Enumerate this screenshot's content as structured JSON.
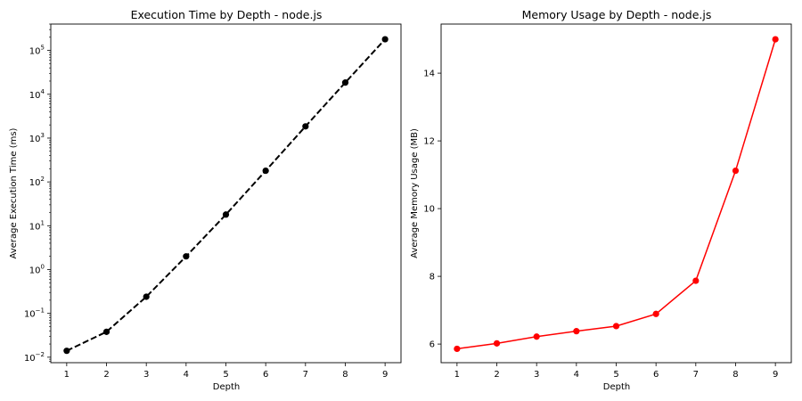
{
  "chart_data": [
    {
      "type": "line",
      "title": "Execution Time by Depth - node.js",
      "xlabel": "Depth",
      "ylabel": "Average Execution Time (ms)",
      "yscale": "log",
      "x": [
        1,
        2,
        3,
        4,
        5,
        6,
        7,
        8,
        9
      ],
      "xlim": [
        0.6,
        9.4
      ],
      "ylim": [
        0.0075,
        400000
      ],
      "grid": false,
      "series": [
        {
          "values": [
            0.014,
            0.038,
            0.24,
            2.0,
            18,
            180,
            1850,
            18500,
            180000
          ],
          "color": "#000000",
          "line_style": "dashed",
          "marker": "circle"
        }
      ],
      "x_ticks": [
        "1",
        "2",
        "3",
        "4",
        "5",
        "6",
        "7",
        "8",
        "9"
      ],
      "y_ticks": [
        {
          "base": "10",
          "exp": "−2",
          "value": 0.01
        },
        {
          "base": "10",
          "exp": "−1",
          "value": 0.1
        },
        {
          "base": "10",
          "exp": "0",
          "value": 1
        },
        {
          "base": "10",
          "exp": "1",
          "value": 10
        },
        {
          "base": "10",
          "exp": "2",
          "value": 100
        },
        {
          "base": "10",
          "exp": "3",
          "value": 1000
        },
        {
          "base": "10",
          "exp": "4",
          "value": 10000
        },
        {
          "base": "10",
          "exp": "5",
          "value": 100000
        }
      ]
    },
    {
      "type": "line",
      "title": "Memory Usage by Depth - node.js",
      "xlabel": "Depth",
      "ylabel": "Average Memory Usage (MB)",
      "x": [
        1,
        2,
        3,
        4,
        5,
        6,
        7,
        8,
        9
      ],
      "xlim": [
        0.6,
        9.4
      ],
      "ylim": [
        5.45,
        15.45
      ],
      "grid": false,
      "series": [
        {
          "values": [
            5.86,
            6.02,
            6.22,
            6.38,
            6.53,
            6.89,
            7.87,
            11.12,
            15.0
          ],
          "color": "#ff0000",
          "line_style": "solid",
          "marker": "circle"
        }
      ],
      "x_ticks": [
        "1",
        "2",
        "3",
        "4",
        "5",
        "6",
        "7",
        "8",
        "9"
      ],
      "y_ticks": [
        "6",
        "8",
        "10",
        "12",
        "14"
      ]
    }
  ]
}
